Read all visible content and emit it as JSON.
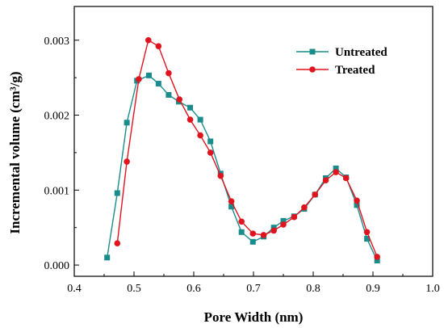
{
  "chart_data": {
    "type": "line",
    "xlabel": "Pore Width (nm)",
    "ylabel": "Incremental volume (cm³/g)",
    "xlim": [
      0.4,
      1.0
    ],
    "ylim": [
      -0.00015,
      0.00345
    ],
    "xticks": [
      "0.4",
      "0.5",
      "0.6",
      "0.7",
      "0.8",
      "0.9",
      "1.0"
    ],
    "yticks": [
      "0.000",
      "0.001",
      "0.002",
      "0.003"
    ],
    "grid": false,
    "legend_position": "top-right",
    "series": [
      {
        "name": "Untreated",
        "color": "#1a8c8c",
        "marker": "square",
        "x": [
          0.455,
          0.472,
          0.488,
          0.505,
          0.525,
          0.541,
          0.558,
          0.575,
          0.594,
          0.611,
          0.628,
          0.645,
          0.663,
          0.68,
          0.699,
          0.717,
          0.734,
          0.75,
          0.768,
          0.785,
          0.803,
          0.821,
          0.838,
          0.855,
          0.873,
          0.89,
          0.907
        ],
        "y": [
          0.0001,
          0.00096,
          0.0019,
          0.00246,
          0.00253,
          0.00242,
          0.00227,
          0.00218,
          0.0021,
          0.00194,
          0.00165,
          0.00122,
          0.00078,
          0.00044,
          0.00031,
          0.00038,
          0.0005,
          0.00059,
          0.00065,
          0.00075,
          0.00094,
          0.00116,
          0.00129,
          0.00117,
          0.0008,
          0.00035,
          6e-05
        ]
      },
      {
        "name": "Treated",
        "color": "#e0141e",
        "marker": "circle",
        "x": [
          0.472,
          0.488,
          0.508,
          0.524,
          0.541,
          0.558,
          0.576,
          0.594,
          0.611,
          0.628,
          0.645,
          0.663,
          0.68,
          0.699,
          0.717,
          0.734,
          0.75,
          0.768,
          0.785,
          0.803,
          0.821,
          0.838,
          0.855,
          0.873,
          0.89,
          0.907
        ],
        "y": [
          0.00029,
          0.00138,
          0.00248,
          0.003,
          0.00292,
          0.00256,
          0.00221,
          0.00194,
          0.00173,
          0.0015,
          0.00119,
          0.00085,
          0.00058,
          0.00042,
          0.0004,
          0.00046,
          0.00054,
          0.00064,
          0.00077,
          0.00094,
          0.00113,
          0.00124,
          0.00116,
          0.00086,
          0.00044,
          0.00011
        ]
      }
    ]
  }
}
